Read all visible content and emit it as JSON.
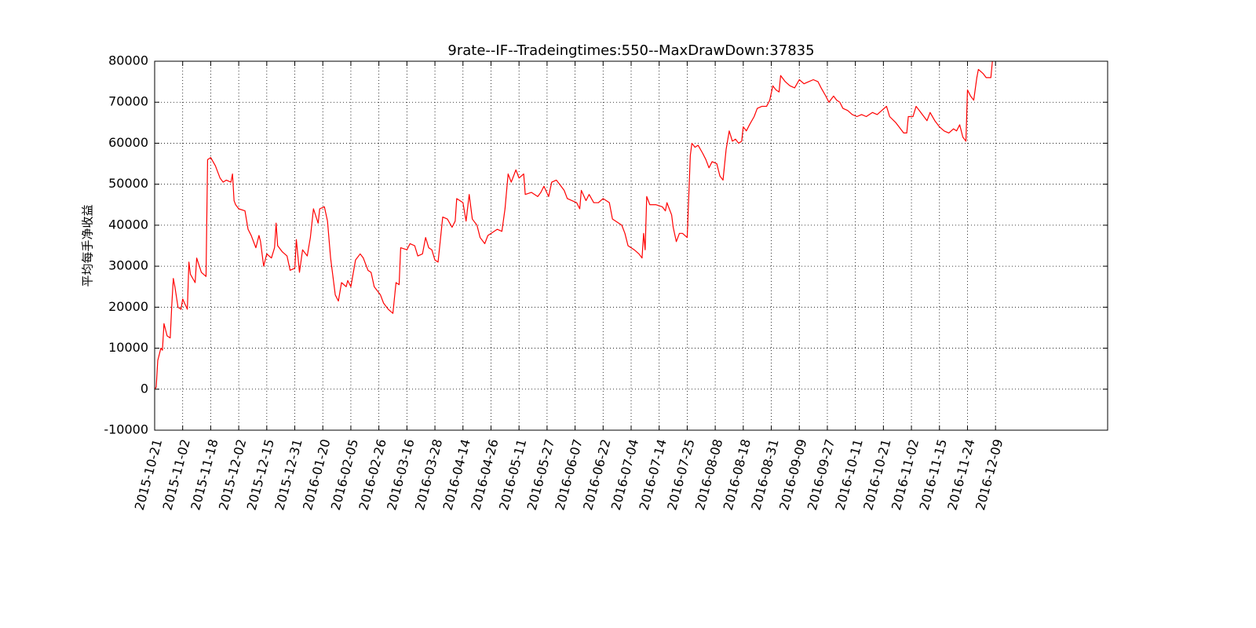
{
  "chart_data": {
    "type": "line",
    "title": "9rate--IF--Tradeingtimes:550--MaxDrawDown:37835",
    "y_label": "平均每手净收益",
    "xlim": [
      0,
      612
    ],
    "ylim": [
      -10000,
      80000
    ],
    "yticks": [
      -10000,
      0,
      10000,
      20000,
      30000,
      40000,
      50000,
      60000,
      70000,
      80000
    ],
    "xticks": [
      {
        "value": 0,
        "label": "2015-10-21"
      },
      {
        "value": 18,
        "label": "2015-11-02"
      },
      {
        "value": 36,
        "label": "2015-11-18"
      },
      {
        "value": 54,
        "label": "2015-12-02"
      },
      {
        "value": 72,
        "label": "2015-12-15"
      },
      {
        "value": 90,
        "label": "2015-12-31"
      },
      {
        "value": 108,
        "label": "2016-01-20"
      },
      {
        "value": 126,
        "label": "2016-02-05"
      },
      {
        "value": 144,
        "label": "2016-02-26"
      },
      {
        "value": 162,
        "label": "2016-03-16"
      },
      {
        "value": 180,
        "label": "2016-03-28"
      },
      {
        "value": 198,
        "label": "2016-04-14"
      },
      {
        "value": 216,
        "label": "2016-04-26"
      },
      {
        "value": 234,
        "label": "2016-05-11"
      },
      {
        "value": 252,
        "label": "2016-05-27"
      },
      {
        "value": 270,
        "label": "2016-06-07"
      },
      {
        "value": 288,
        "label": "2016-06-22"
      },
      {
        "value": 306,
        "label": "2016-07-04"
      },
      {
        "value": 324,
        "label": "2016-07-14"
      },
      {
        "value": 342,
        "label": "2016-07-25"
      },
      {
        "value": 360,
        "label": "2016-08-08"
      },
      {
        "value": 378,
        "label": "2016-08-18"
      },
      {
        "value": 396,
        "label": "2016-08-31"
      },
      {
        "value": 414,
        "label": "2016-09-09"
      },
      {
        "value": 432,
        "label": "2016-09-27"
      },
      {
        "value": 450,
        "label": "2016-10-11"
      },
      {
        "value": 468,
        "label": "2016-10-21"
      },
      {
        "value": 486,
        "label": "2016-11-02"
      },
      {
        "value": 504,
        "label": "2016-11-15"
      },
      {
        "value": 522,
        "label": "2016-11-24"
      },
      {
        "value": 540,
        "label": "2016-12-09"
      }
    ],
    "grid": true,
    "series": [
      {
        "color": "#ff0000",
        "x": [
          0,
          1,
          2,
          4,
          5,
          6,
          8,
          10,
          11,
          12,
          13,
          15,
          17,
          18,
          21,
          22,
          23,
          26,
          27,
          30,
          33,
          34,
          36,
          39,
          42,
          44,
          46,
          49,
          50,
          51,
          52,
          54,
          58,
          60,
          62,
          65,
          67,
          68,
          70,
          72,
          75,
          77,
          78,
          79,
          82,
          85,
          87,
          90,
          91,
          93,
          95,
          98,
          100,
          102,
          105,
          106,
          109,
          111,
          113,
          116,
          118,
          120,
          123,
          124,
          126,
          129,
          132,
          134,
          137,
          139,
          141,
          145,
          147,
          150,
          153,
          155,
          157,
          158,
          162,
          164,
          167,
          169,
          172,
          174,
          176,
          178,
          180,
          182,
          185,
          188,
          191,
          193,
          194,
          198,
          200,
          202,
          204,
          207,
          209,
          212,
          214,
          218,
          220,
          223,
          225,
          227,
          229,
          232,
          234,
          237,
          238,
          242,
          246,
          248,
          250,
          253,
          255,
          258,
          260,
          263,
          265,
          268,
          271,
          273,
          274,
          277,
          279,
          282,
          285,
          288,
          292,
          294,
          298,
          300,
          302,
          304,
          308,
          311,
          313,
          314,
          315,
          316,
          318,
          322,
          326,
          328,
          329,
          332,
          333,
          335,
          337,
          339,
          342,
          344,
          345,
          347,
          349,
          352,
          354,
          356,
          358,
          361,
          363,
          365,
          367,
          369,
          371,
          373,
          375,
          377,
          378,
          380,
          382,
          385,
          387,
          390,
          393,
          395,
          397,
          399,
          401,
          402,
          405,
          408,
          411,
          414,
          417,
          420,
          423,
          426,
          428,
          431,
          433,
          436,
          438,
          440,
          442,
          445,
          448,
          451,
          454,
          457,
          461,
          464,
          467,
          470,
          472,
          476,
          479,
          481,
          483,
          484,
          487,
          489,
          491,
          493,
          496,
          498,
          501,
          504,
          507,
          510,
          513,
          515,
          517,
          519,
          521,
          522,
          524,
          526,
          528,
          529,
          532,
          534,
          537,
          538
        ],
        "values": [
          0,
          500,
          7000,
          10000,
          9500,
          16000,
          13000,
          12500,
          20500,
          27000,
          25000,
          20000,
          19500,
          22000,
          19500,
          31000,
          28000,
          26000,
          32000,
          28500,
          27500,
          56000,
          56500,
          54500,
          51500,
          50500,
          51000,
          50500,
          52500,
          46000,
          45000,
          44000,
          43500,
          39000,
          37500,
          34500,
          37500,
          36000,
          30000,
          33000,
          32000,
          34500,
          40500,
          35000,
          33500,
          32500,
          29000,
          29500,
          36500,
          28500,
          34000,
          32500,
          37000,
          44000,
          40500,
          44000,
          44500,
          41000,
          32000,
          23000,
          21500,
          26000,
          25000,
          26500,
          25000,
          31500,
          33000,
          32000,
          29000,
          28500,
          25000,
          23000,
          21000,
          19500,
          18500,
          26000,
          25500,
          34500,
          34000,
          35500,
          35000,
          32500,
          33000,
          37000,
          34500,
          34000,
          31500,
          31000,
          42000,
          41500,
          39500,
          41000,
          46500,
          45500,
          41000,
          47500,
          41500,
          40000,
          37000,
          35500,
          37500,
          38500,
          39000,
          38500,
          44000,
          52500,
          50500,
          53500,
          51500,
          52500,
          47500,
          48000,
          47000,
          48000,
          49500,
          47000,
          50500,
          51000,
          50000,
          48500,
          46500,
          46000,
          45500,
          44000,
          48500,
          46000,
          47500,
          45500,
          45500,
          46500,
          45500,
          41500,
          40500,
          40000,
          38000,
          35000,
          34000,
          33000,
          32000,
          38000,
          34000,
          47000,
          45000,
          45000,
          44500,
          43500,
          45500,
          42500,
          39500,
          36000,
          38000,
          38000,
          37000,
          57000,
          60000,
          59000,
          59500,
          57500,
          56000,
          54000,
          55500,
          55000,
          52000,
          51000,
          58500,
          63000,
          60500,
          61000,
          60000,
          60500,
          64000,
          63000,
          64500,
          66500,
          68500,
          69000,
          69000,
          70500,
          74000,
          73000,
          72500,
          76500,
          75000,
          74000,
          73500,
          75500,
          74500,
          75000,
          75500,
          75000,
          73500,
          71500,
          70000,
          71500,
          70500,
          70000,
          68500,
          68000,
          67000,
          66500,
          67000,
          66500,
          67500,
          67000,
          68000,
          69000,
          66500,
          65000,
          63500,
          62500,
          62500,
          66500,
          66500,
          69000,
          68000,
          67000,
          65500,
          67500,
          65500,
          64000,
          63000,
          62500,
          63500,
          63000,
          64500,
          61500,
          60500,
          73000,
          71500,
          70500,
          76000,
          78000,
          77000,
          76000,
          76000,
          80000
        ]
      }
    ]
  }
}
